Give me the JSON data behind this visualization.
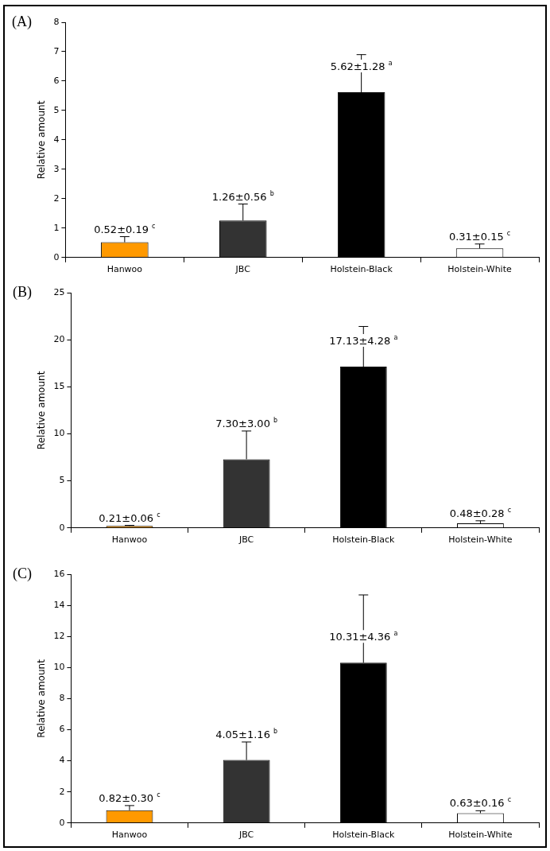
{
  "chart_data": [
    {
      "type": "bar",
      "title": "(A)",
      "ylabel": "Relative amount",
      "categories": [
        "Hanwoo",
        "JBC",
        "Holstein-Black",
        "Holstein-White"
      ],
      "values": [
        0.52,
        1.26,
        5.62,
        0.31
      ],
      "errors": [
        [
          0.52,
          0.71
        ],
        [
          1.26,
          1.82
        ],
        [
          5.62,
          6.9
        ],
        [
          0.31,
          0.46
        ]
      ],
      "colors": [
        "#ff9900",
        "#333333",
        "#000000",
        "#ffffff"
      ],
      "ylim": [
        0,
        8
      ],
      "yticks": [
        0,
        1,
        2,
        3,
        4,
        5,
        6,
        7,
        8
      ],
      "grid": false,
      "legend": false,
      "value_labels": [
        "0.52±0.19 $^{c}$",
        "1.26±0.56 $^{b}$",
        "5.62±1.28 $^{a}$",
        "0.31±0.15 $^{c}$"
      ]
    },
    {
      "type": "bar",
      "title": "(B)",
      "ylabel": "Relative amount",
      "categories": [
        "Hanwoo",
        "JBC",
        "Holstein-Black",
        "Holstein-White"
      ],
      "values": [
        0.21,
        7.3,
        17.13,
        0.48
      ],
      "errors": [
        [
          0.21,
          0.27
        ],
        [
          7.3,
          10.3
        ],
        [
          17.13,
          21.41
        ],
        [
          0.48,
          0.76
        ]
      ],
      "colors": [
        "#ff9900",
        "#333333",
        "#000000",
        "#ffffff"
      ],
      "ylim": [
        0,
        25
      ],
      "yticks": [
        0,
        5,
        10,
        15,
        20,
        25
      ],
      "grid": false,
      "legend": false,
      "value_labels": [
        "0.21±0.06 $^{c}$",
        "7.30±3.00 $^{b}$",
        "17.13±4.28 $^{a}$",
        "0.48±0.28 $^{c}$"
      ]
    },
    {
      "type": "bar",
      "title": "(C)",
      "ylabel": "Relative amount",
      "categories": [
        "Hanwoo",
        "JBC",
        "Holstein-Black",
        "Holstein-White"
      ],
      "values": [
        0.82,
        4.05,
        10.31,
        0.63
      ],
      "errors": [
        [
          0.82,
          1.12
        ],
        [
          4.05,
          5.21
        ],
        [
          10.31,
          14.67
        ],
        [
          0.63,
          0.79
        ]
      ],
      "colors": [
        "#ff9900",
        "#333333",
        "#000000",
        "#ffffff"
      ],
      "ylim": [
        0,
        16
      ],
      "yticks": [
        0,
        2,
        4,
        6,
        8,
        10,
        12,
        14,
        16
      ],
      "grid": false,
      "legend": false,
      "value_labels": [
        "0.82±0.30 $^{c}$",
        "4.05±1.16 $^{b}$",
        "10.31±4.36 $^{a}$",
        "0.63±0.16 $^{c}$"
      ]
    }
  ]
}
